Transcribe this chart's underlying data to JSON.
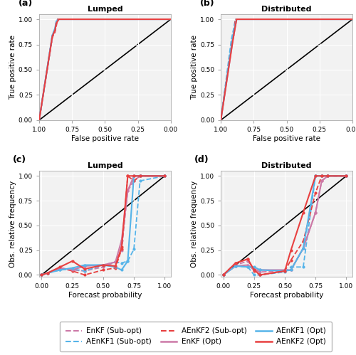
{
  "colors": {
    "enkf": "#CC79A7",
    "aenkf1": "#56B4E9",
    "aenkf2": "#E84040"
  },
  "roc_a": {
    "enkf_subopt": {
      "fpr": [
        1.0,
        0.9,
        0.88,
        0.87,
        0.86,
        0.0,
        0.0
      ],
      "tpr": [
        0.0,
        0.82,
        0.88,
        0.95,
        1.0,
        1.0,
        1.0
      ]
    },
    "aenkf1_subopt": {
      "fpr": [
        1.0,
        0.9,
        0.88,
        0.87,
        0.86,
        0.0,
        0.0
      ],
      "tpr": [
        0.0,
        0.85,
        0.9,
        0.97,
        1.0,
        1.0,
        1.0
      ]
    },
    "aenkf2_subopt": {
      "fpr": [
        1.0,
        0.9,
        0.88,
        0.87,
        0.86,
        0.0,
        0.0
      ],
      "tpr": [
        0.0,
        0.82,
        0.87,
        0.93,
        1.0,
        1.0,
        1.0
      ]
    },
    "enkf_opt": {
      "fpr": [
        1.0,
        0.9,
        0.88,
        0.87,
        0.85,
        0.0,
        0.0
      ],
      "tpr": [
        0.0,
        0.83,
        0.89,
        0.97,
        1.0,
        1.0,
        1.0
      ]
    },
    "aenkf1_opt": {
      "fpr": [
        1.0,
        0.9,
        0.88,
        0.87,
        0.85,
        0.0,
        0.0
      ],
      "tpr": [
        0.0,
        0.84,
        0.91,
        0.98,
        1.0,
        1.0,
        1.0
      ]
    },
    "aenkf2_opt": {
      "fpr": [
        1.0,
        0.9,
        0.88,
        0.87,
        0.85,
        0.0,
        0.0
      ],
      "tpr": [
        0.0,
        0.83,
        0.89,
        0.96,
        1.0,
        1.0,
        1.0
      ]
    }
  },
  "roc_b": {
    "enkf_subopt": {
      "fpr": [
        1.0,
        0.92,
        0.9,
        0.89,
        0.0,
        0.0
      ],
      "tpr": [
        0.0,
        0.75,
        0.88,
        1.0,
        1.0,
        1.0
      ]
    },
    "aenkf1_subopt": {
      "fpr": [
        1.0,
        0.92,
        0.9,
        0.89,
        0.0,
        0.0
      ],
      "tpr": [
        0.0,
        0.8,
        0.92,
        1.0,
        1.0,
        1.0
      ]
    },
    "aenkf2_subopt": {
      "fpr": [
        1.0,
        0.92,
        0.9,
        0.89,
        0.0,
        0.0
      ],
      "tpr": [
        0.0,
        0.73,
        0.85,
        1.0,
        1.0,
        1.0
      ]
    },
    "enkf_opt": {
      "fpr": [
        1.0,
        0.91,
        0.89,
        0.88,
        0.0,
        0.0
      ],
      "tpr": [
        0.0,
        0.78,
        0.93,
        1.0,
        1.0,
        1.0
      ]
    },
    "aenkf1_opt": {
      "fpr": [
        1.0,
        0.91,
        0.89,
        0.88,
        0.0,
        0.0
      ],
      "tpr": [
        0.0,
        0.82,
        0.95,
        1.0,
        1.0,
        1.0
      ]
    },
    "aenkf2_opt": {
      "fpr": [
        1.0,
        0.91,
        0.89,
        0.88,
        0.0,
        0.0
      ],
      "tpr": [
        0.0,
        0.78,
        0.93,
        1.0,
        1.0,
        1.0
      ]
    }
  },
  "rel_c": {
    "enkf_subopt": {
      "x": [
        0.0,
        0.05,
        0.15,
        0.25,
        0.35,
        0.5,
        0.6,
        0.65,
        0.7,
        0.75,
        0.8,
        1.0
      ],
      "y": [
        0.0,
        0.02,
        0.07,
        0.05,
        0.04,
        0.08,
        0.13,
        0.25,
        0.85,
        0.95,
        1.0,
        1.0
      ]
    },
    "aenkf1_subopt": {
      "x": [
        0.0,
        0.05,
        0.15,
        0.25,
        0.35,
        0.5,
        0.6,
        0.65,
        0.7,
        0.75,
        0.8,
        1.0
      ],
      "y": [
        0.0,
        0.02,
        0.05,
        0.06,
        0.04,
        0.1,
        0.13,
        0.12,
        0.14,
        0.26,
        0.95,
        1.0
      ]
    },
    "aenkf2_subopt": {
      "x": [
        0.0,
        0.05,
        0.15,
        0.25,
        0.35,
        0.5,
        0.6,
        0.65,
        0.7,
        0.75,
        0.8,
        1.0
      ],
      "y": [
        0.0,
        0.02,
        0.07,
        0.04,
        0.0,
        0.05,
        0.07,
        0.26,
        1.0,
        0.95,
        1.0,
        1.0
      ]
    },
    "enkf_opt": {
      "x": [
        0.0,
        0.05,
        0.15,
        0.25,
        0.35,
        0.5,
        0.6,
        0.65,
        0.7,
        0.75,
        0.8,
        1.0
      ],
      "y": [
        0.0,
        0.02,
        0.07,
        0.05,
        0.09,
        0.1,
        0.13,
        0.35,
        0.85,
        1.0,
        1.0,
        1.0
      ]
    },
    "aenkf1_opt": {
      "x": [
        0.0,
        0.05,
        0.15,
        0.25,
        0.35,
        0.5,
        0.6,
        0.65,
        0.7,
        0.75,
        0.8,
        1.0
      ],
      "y": [
        0.0,
        0.02,
        0.05,
        0.07,
        0.1,
        0.1,
        0.08,
        0.05,
        0.14,
        1.0,
        1.0,
        1.0
      ]
    },
    "aenkf2_opt": {
      "x": [
        0.0,
        0.05,
        0.15,
        0.25,
        0.35,
        0.5,
        0.6,
        0.65,
        0.7,
        0.75,
        0.8,
        1.0
      ],
      "y": [
        0.0,
        0.02,
        0.08,
        0.14,
        0.06,
        0.1,
        0.09,
        0.28,
        1.0,
        1.0,
        1.0,
        1.0
      ]
    }
  },
  "rel_d": {
    "enkf_subopt": {
      "x": [
        0.0,
        0.1,
        0.2,
        0.25,
        0.3,
        0.5,
        0.55,
        0.65,
        0.75,
        0.8,
        0.85,
        1.0
      ],
      "y": [
        0.0,
        0.1,
        0.14,
        0.05,
        0.03,
        0.04,
        0.05,
        0.27,
        0.63,
        0.95,
        1.0,
        1.0
      ]
    },
    "aenkf1_subopt": {
      "x": [
        0.0,
        0.1,
        0.2,
        0.25,
        0.3,
        0.5,
        0.55,
        0.65,
        0.75,
        0.8,
        0.85,
        1.0
      ],
      "y": [
        0.0,
        0.09,
        0.08,
        0.0,
        0.0,
        0.03,
        0.08,
        0.08,
        1.0,
        1.0,
        1.0,
        1.0
      ]
    },
    "aenkf2_subopt": {
      "x": [
        0.0,
        0.1,
        0.2,
        0.25,
        0.3,
        0.5,
        0.55,
        0.65,
        0.75,
        0.8,
        0.85,
        1.0
      ],
      "y": [
        0.0,
        0.12,
        0.16,
        0.04,
        0.0,
        0.04,
        0.15,
        0.34,
        0.83,
        1.0,
        1.0,
        1.0
      ]
    },
    "enkf_opt": {
      "x": [
        0.0,
        0.1,
        0.2,
        0.25,
        0.3,
        0.5,
        0.55,
        0.65,
        0.75,
        0.8,
        0.85,
        1.0
      ],
      "y": [
        0.0,
        0.09,
        0.1,
        0.05,
        0.05,
        0.05,
        0.05,
        0.27,
        0.63,
        0.95,
        1.0,
        1.0
      ]
    },
    "aenkf1_opt": {
      "x": [
        0.0,
        0.1,
        0.2,
        0.25,
        0.3,
        0.5,
        0.55,
        0.65,
        0.75,
        0.8,
        0.85,
        1.0
      ],
      "y": [
        0.0,
        0.09,
        0.08,
        0.08,
        0.05,
        0.04,
        0.05,
        0.27,
        1.0,
        1.0,
        1.0,
        1.0
      ]
    },
    "aenkf2_opt": {
      "x": [
        0.0,
        0.1,
        0.2,
        0.25,
        0.3,
        0.5,
        0.55,
        0.65,
        0.75,
        0.8,
        0.85,
        1.0
      ],
      "y": [
        0.0,
        0.12,
        0.16,
        0.05,
        0.0,
        0.04,
        0.25,
        0.63,
        1.0,
        1.0,
        1.0,
        1.0
      ]
    }
  },
  "legend": {
    "enkf_subopt_label": "EnKF (Sub-opt)",
    "aenkf1_subopt_label": "AEnKF1 (Sub-opt)",
    "aenkf2_subopt_label": "AEnKF2 (Sub-opt)",
    "enkf_opt_label": "EnKF (Opt)",
    "aenkf1_opt_label": "AEnKF1 (Opt)",
    "aenkf2_opt_label": "AEnKF2 (Opt)"
  },
  "bg_color": "#f2f2f2",
  "grid_color": "white"
}
